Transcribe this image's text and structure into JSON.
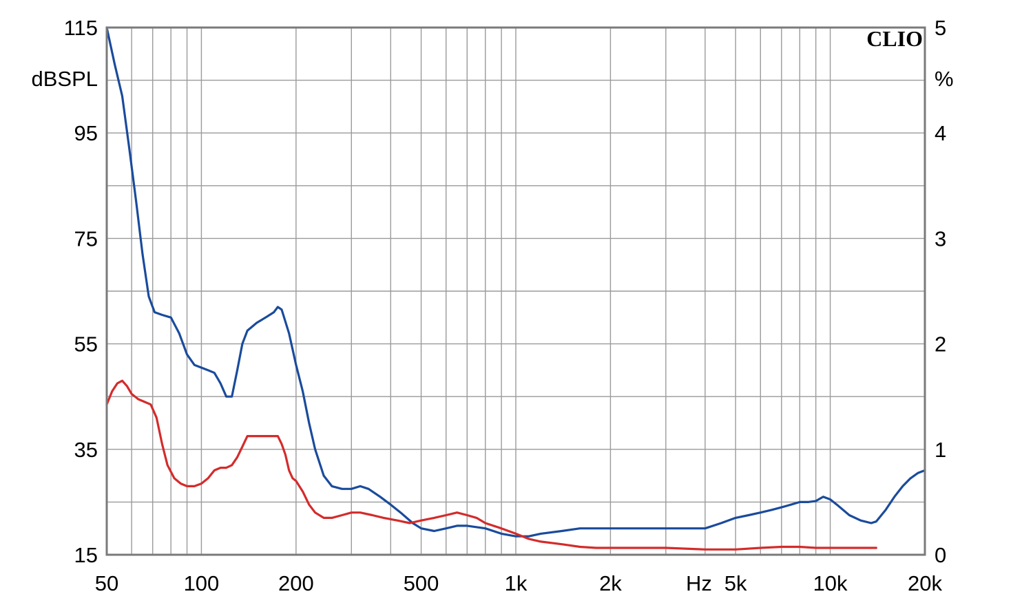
{
  "chart_data": {
    "type": "line",
    "x_scale": "log",
    "xlim": [
      50,
      20000
    ],
    "ylim_left": [
      15,
      115
    ],
    "ylim_right": [
      0,
      5
    ],
    "grid": true,
    "brand": "CLIO",
    "ylabel_left": "dBSPL",
    "ylabel_right": "%",
    "xlabel": "Hz",
    "x_ticks": [
      {
        "value": 50,
        "label": "50"
      },
      {
        "value": 100,
        "label": "100"
      },
      {
        "value": 200,
        "label": "200"
      },
      {
        "value": 500,
        "label": "500"
      },
      {
        "value": 1000,
        "label": "1k"
      },
      {
        "value": 2000,
        "label": "2k"
      },
      {
        "value": 5000,
        "label": "5k"
      },
      {
        "value": 10000,
        "label": "10k"
      },
      {
        "value": 20000,
        "label": "20k"
      }
    ],
    "y_ticks_left": [
      {
        "value": 115,
        "label": "115"
      },
      {
        "value": 95,
        "label": "95"
      },
      {
        "value": 75,
        "label": "75"
      },
      {
        "value": 55,
        "label": "55"
      },
      {
        "value": 35,
        "label": "35"
      },
      {
        "value": 15,
        "label": "15"
      }
    ],
    "y_ticks_right": [
      {
        "value": 5,
        "label": "5"
      },
      {
        "value": 4,
        "label": "4"
      },
      {
        "value": 3,
        "label": "3"
      },
      {
        "value": 2,
        "label": "2"
      },
      {
        "value": 1,
        "label": "1"
      },
      {
        "value": 0,
        "label": "0"
      }
    ],
    "series": [
      {
        "color": "#1a4b9c",
        "axis": "left",
        "points": [
          [
            50,
            115
          ],
          [
            53,
            108
          ],
          [
            56,
            102
          ],
          [
            59,
            92
          ],
          [
            62,
            82
          ],
          [
            65,
            72
          ],
          [
            68,
            64
          ],
          [
            71,
            61
          ],
          [
            75,
            60.5
          ],
          [
            80,
            60
          ],
          [
            85,
            57
          ],
          [
            90,
            53
          ],
          [
            95,
            51
          ],
          [
            100,
            50.5
          ],
          [
            105,
            50
          ],
          [
            110,
            49.5
          ],
          [
            115,
            47.5
          ],
          [
            120,
            45
          ],
          [
            125,
            45
          ],
          [
            130,
            50
          ],
          [
            135,
            55
          ],
          [
            140,
            57.5
          ],
          [
            150,
            59
          ],
          [
            160,
            60
          ],
          [
            170,
            61
          ],
          [
            175,
            62
          ],
          [
            180,
            61.5
          ],
          [
            190,
            57
          ],
          [
            200,
            51
          ],
          [
            210,
            46
          ],
          [
            220,
            40
          ],
          [
            230,
            35
          ],
          [
            245,
            30
          ],
          [
            260,
            28
          ],
          [
            280,
            27.5
          ],
          [
            300,
            27.5
          ],
          [
            320,
            28
          ],
          [
            340,
            27.5
          ],
          [
            370,
            26
          ],
          [
            400,
            24.5
          ],
          [
            430,
            23
          ],
          [
            470,
            21
          ],
          [
            500,
            20
          ],
          [
            550,
            19.5
          ],
          [
            600,
            20
          ],
          [
            650,
            20.5
          ],
          [
            700,
            20.5
          ],
          [
            800,
            20
          ],
          [
            900,
            19
          ],
          [
            1000,
            18.5
          ],
          [
            1100,
            18.5
          ],
          [
            1200,
            19
          ],
          [
            1400,
            19.5
          ],
          [
            1600,
            20
          ],
          [
            2000,
            20
          ],
          [
            2500,
            20
          ],
          [
            3000,
            20
          ],
          [
            3500,
            20
          ],
          [
            4000,
            20
          ],
          [
            4500,
            21
          ],
          [
            5000,
            22
          ],
          [
            5500,
            22.5
          ],
          [
            6000,
            23
          ],
          [
            6500,
            23.5
          ],
          [
            7000,
            24
          ],
          [
            7500,
            24.5
          ],
          [
            8000,
            25
          ],
          [
            8500,
            25
          ],
          [
            9000,
            25.2
          ],
          [
            9500,
            26
          ],
          [
            10000,
            25.5
          ],
          [
            10500,
            24.5
          ],
          [
            11500,
            22.5
          ],
          [
            12500,
            21.5
          ],
          [
            13500,
            21
          ],
          [
            14000,
            21.3
          ],
          [
            15000,
            23.5
          ],
          [
            16000,
            26
          ],
          [
            17000,
            28
          ],
          [
            18000,
            29.5
          ],
          [
            19000,
            30.5
          ],
          [
            20000,
            31
          ]
        ]
      },
      {
        "color": "#d42b2b",
        "axis": "left",
        "points": [
          [
            50,
            43.5
          ],
          [
            52,
            46
          ],
          [
            54,
            47.5
          ],
          [
            56,
            48
          ],
          [
            58,
            47
          ],
          [
            60,
            45.5
          ],
          [
            63,
            44.5
          ],
          [
            66,
            44
          ],
          [
            69,
            43.5
          ],
          [
            72,
            41
          ],
          [
            75,
            36
          ],
          [
            78,
            32
          ],
          [
            82,
            29.5
          ],
          [
            86,
            28.5
          ],
          [
            90,
            28
          ],
          [
            95,
            28
          ],
          [
            100,
            28.5
          ],
          [
            105,
            29.5
          ],
          [
            110,
            31
          ],
          [
            115,
            31.5
          ],
          [
            120,
            31.5
          ],
          [
            125,
            32
          ],
          [
            130,
            33.5
          ],
          [
            135,
            35.5
          ],
          [
            140,
            37.5
          ],
          [
            150,
            37.5
          ],
          [
            160,
            37.5
          ],
          [
            170,
            37.5
          ],
          [
            175,
            37.5
          ],
          [
            180,
            36
          ],
          [
            185,
            34
          ],
          [
            190,
            31
          ],
          [
            195,
            29.5
          ],
          [
            200,
            29
          ],
          [
            210,
            27
          ],
          [
            220,
            24.5
          ],
          [
            230,
            23
          ],
          [
            245,
            22
          ],
          [
            260,
            22
          ],
          [
            280,
            22.5
          ],
          [
            300,
            23
          ],
          [
            320,
            23
          ],
          [
            350,
            22.5
          ],
          [
            380,
            22
          ],
          [
            420,
            21.5
          ],
          [
            460,
            21
          ],
          [
            500,
            21.5
          ],
          [
            550,
            22
          ],
          [
            600,
            22.5
          ],
          [
            650,
            23
          ],
          [
            700,
            22.5
          ],
          [
            750,
            22
          ],
          [
            800,
            21
          ],
          [
            900,
            20
          ],
          [
            1000,
            19
          ],
          [
            1100,
            18
          ],
          [
            1200,
            17.5
          ],
          [
            1400,
            17
          ],
          [
            1600,
            16.5
          ],
          [
            1800,
            16.3
          ],
          [
            2000,
            16.3
          ],
          [
            2500,
            16.3
          ],
          [
            3000,
            16.3
          ],
          [
            4000,
            16
          ],
          [
            5000,
            16
          ],
          [
            6000,
            16.3
          ],
          [
            7000,
            16.5
          ],
          [
            8000,
            16.5
          ],
          [
            9000,
            16.3
          ],
          [
            10000,
            16.3
          ],
          [
            12000,
            16.3
          ],
          [
            14000,
            16.3
          ]
        ]
      }
    ]
  }
}
